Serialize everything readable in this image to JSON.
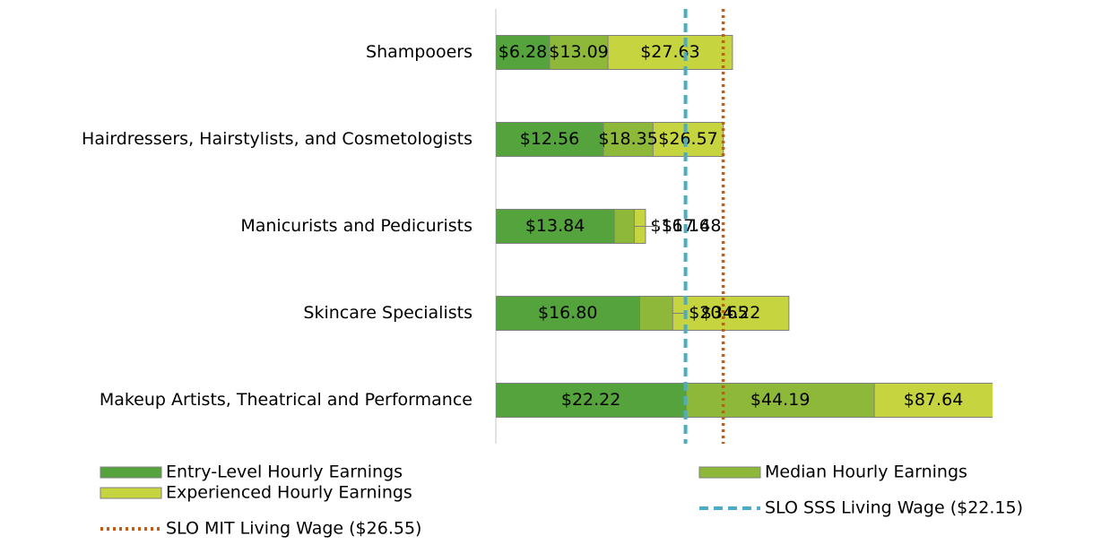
{
  "chart_data": {
    "type": "bar",
    "orientation": "horizontal",
    "overlap": true,
    "categories": [
      "Shampooers",
      "Hairdressers, Hairstylists, and Cosmetologists",
      "Manicurists and Pedicurists",
      "Skincare Specialists",
      "Makeup Artists, Theatrical and Performance"
    ],
    "series": [
      {
        "name": "Entry-Level Hourly Earnings",
        "color": "#55a33c",
        "values": [
          6.28,
          12.56,
          13.84,
          16.8,
          22.22
        ],
        "value_labels": [
          "$6.28",
          "$12.56",
          "$13.84",
          "$16.80",
          "$22.22"
        ]
      },
      {
        "name": "Median Hourly Earnings",
        "color": "#8db83a",
        "values": [
          13.09,
          18.35,
          16.16,
          20.65,
          44.19
        ],
        "value_labels": [
          "$13.09",
          "$18.35",
          "$16.16",
          "$20.65",
          "$44.19"
        ]
      },
      {
        "name": "Experienced Hourly Earnings",
        "color": "#c6d43f",
        "values": [
          27.63,
          26.57,
          17.48,
          34.22,
          87.64
        ],
        "value_labels": [
          "$27.63",
          "$26.57",
          "$17.48",
          "$34.22",
          "$87.64"
        ]
      }
    ],
    "reference_lines": [
      {
        "name": "SLO SSS Living Wage ($22.15)",
        "value": 22.15,
        "color": "#4bacc6",
        "style": "dashed"
      },
      {
        "name": "SLO MIT Living Wage ($26.55)",
        "value": 26.55,
        "color": "#c55a11",
        "style": "dotted"
      }
    ],
    "xlim": [
      0,
      58
    ]
  }
}
